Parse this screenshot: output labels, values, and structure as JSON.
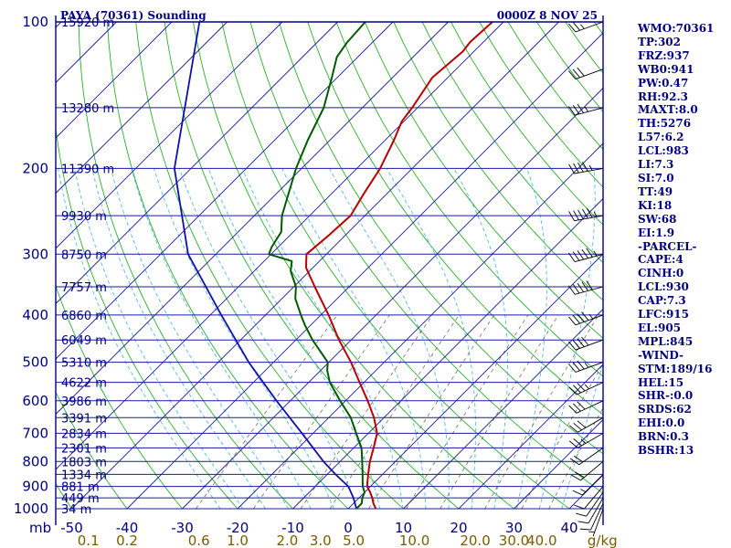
{
  "chart_data": {
    "type": "skew-t",
    "title": "PAYA (70361) Sounding",
    "datetime": "0000Z  8 NOV 25",
    "pressure_axis_label": "mb",
    "pressure_levels": [
      {
        "label": "100",
        "p": 100
      },
      {
        "label": "200",
        "p": 200
      },
      {
        "label": "300",
        "p": 300
      },
      {
        "label": "400",
        "p": 400
      },
      {
        "label": "500",
        "p": 500
      },
      {
        "label": "600",
        "p": 600
      },
      {
        "label": "700",
        "p": 700
      },
      {
        "label": "800",
        "p": 800
      },
      {
        "label": "900",
        "p": 900
      },
      {
        "label": "1000",
        "p": 1000
      }
    ],
    "height_lines": [
      {
        "label": "15920 m",
        "p": 100
      },
      {
        "label": "13280 m",
        "p": 150
      },
      {
        "label": "11390 m",
        "p": 200
      },
      {
        "label": "9930 m",
        "p": 250
      },
      {
        "label": "8750 m",
        "p": 300
      },
      {
        "label": "7757 m",
        "p": 350
      },
      {
        "label": "6860 m",
        "p": 400
      },
      {
        "label": "6049 m",
        "p": 450
      },
      {
        "label": "5310 m",
        "p": 500
      },
      {
        "label": "4622 m",
        "p": 550
      },
      {
        "label": "3986 m",
        "p": 600
      },
      {
        "label": "3391 m",
        "p": 650
      },
      {
        "label": "2834 m",
        "p": 700
      },
      {
        "label": "2301 m",
        "p": 750
      },
      {
        "label": "1803 m",
        "p": 800
      },
      {
        "label": "1334 m",
        "p": 850
      },
      {
        "label": "881 m",
        "p": 900
      },
      {
        "label": "449 m",
        "p": 950
      },
      {
        "label": "34 m",
        "p": 1000
      }
    ],
    "temperature_ticks": [
      {
        "label": "-50",
        "t": -50
      },
      {
        "label": "-40",
        "t": -40
      },
      {
        "label": "-30",
        "t": -30
      },
      {
        "label": "-20",
        "t": -20
      },
      {
        "label": "-10",
        "t": -10
      },
      {
        "label": "0",
        "t": 0
      },
      {
        "label": "10",
        "t": 10
      },
      {
        "label": "20",
        "t": 20
      },
      {
        "label": "30",
        "t": 30
      },
      {
        "label": "40",
        "t": 40
      }
    ],
    "mixing_ratio_ticks": [
      {
        "label": "0.1",
        "t": -47
      },
      {
        "label": "0.2",
        "t": -40
      },
      {
        "label": "0.6",
        "t": -27
      },
      {
        "label": "1.0",
        "t": -20
      },
      {
        "label": "2.0",
        "t": -11
      },
      {
        "label": "3.0",
        "t": -5
      },
      {
        "label": "5.0",
        "t": 1
      },
      {
        "label": "10.0",
        "t": 12
      },
      {
        "label": "20.0",
        "t": 23
      },
      {
        "label": "30.0",
        "t": 30
      },
      {
        "label": "40.0",
        "t": 35
      },
      {
        "label": "g/kg",
        "t": 46
      }
    ],
    "temperature_profile": [
      [
        1000,
        5.0
      ],
      [
        975,
        3.6
      ],
      [
        950,
        2.4
      ],
      [
        925,
        1.0
      ],
      [
        900,
        -0.6
      ],
      [
        850,
        -2.6
      ],
      [
        800,
        -4.6
      ],
      [
        750,
        -6.4
      ],
      [
        700,
        -8.4
      ],
      [
        650,
        -11.8
      ],
      [
        600,
        -16.0
      ],
      [
        550,
        -20.8
      ],
      [
        500,
        -26.0
      ],
      [
        450,
        -32.2
      ],
      [
        400,
        -38.6
      ],
      [
        350,
        -46.2
      ],
      [
        320,
        -51.2
      ],
      [
        300,
        -53.6
      ],
      [
        275,
        -53.0
      ],
      [
        250,
        -52.6
      ],
      [
        225,
        -54.2
      ],
      [
        200,
        -55.8
      ],
      [
        175,
        -58.4
      ],
      [
        160,
        -60.4
      ],
      [
        150,
        -61.0
      ],
      [
        130,
        -62.8
      ],
      [
        115,
        -62.0
      ],
      [
        110,
        -62.4
      ],
      [
        100,
        -62.0
      ]
    ],
    "dewpoint_profile": [
      [
        1000,
        1.5
      ],
      [
        975,
        1.5
      ],
      [
        950,
        0.6
      ],
      [
        925,
        0.0
      ],
      [
        900,
        -1.4
      ],
      [
        850,
        -3.6
      ],
      [
        800,
        -6.0
      ],
      [
        750,
        -8.6
      ],
      [
        700,
        -12.2
      ],
      [
        650,
        -16.0
      ],
      [
        600,
        -21.0
      ],
      [
        550,
        -26.2
      ],
      [
        520,
        -28.8
      ],
      [
        500,
        -30.2
      ],
      [
        450,
        -37.0
      ],
      [
        420,
        -41.0
      ],
      [
        400,
        -43.6
      ],
      [
        370,
        -47.6
      ],
      [
        350,
        -49.6
      ],
      [
        325,
        -53.4
      ],
      [
        310,
        -55.0
      ],
      [
        300,
        -60.4
      ],
      [
        290,
        -61.2
      ],
      [
        270,
        -62.2
      ],
      [
        250,
        -65.0
      ],
      [
        200,
        -71.0
      ],
      [
        175,
        -74.0
      ],
      [
        150,
        -77.0
      ],
      [
        130,
        -81.0
      ],
      [
        118,
        -83.8
      ],
      [
        110,
        -84.6
      ],
      [
        100,
        -85.0
      ]
    ],
    "parcel_profile": [
      [
        1000,
        1.5
      ],
      [
        950,
        -1.0
      ],
      [
        900,
        -4.0
      ],
      [
        850,
        -8.5
      ],
      [
        800,
        -13.0
      ],
      [
        700,
        -22.0
      ],
      [
        600,
        -32.5
      ],
      [
        500,
        -44.5
      ],
      [
        400,
        -58.0
      ],
      [
        300,
        -75.0
      ],
      [
        200,
        -93.0
      ],
      [
        100,
        -115.0
      ]
    ],
    "wind_barbs": [
      {
        "p": 1000,
        "dir": 200,
        "kt": 5
      },
      {
        "p": 975,
        "dir": 205,
        "kt": 10
      },
      {
        "p": 950,
        "dir": 210,
        "kt": 10
      },
      {
        "p": 925,
        "dir": 215,
        "kt": 10
      },
      {
        "p": 900,
        "dir": 220,
        "kt": 10
      },
      {
        "p": 850,
        "dir": 225,
        "kt": 15
      },
      {
        "p": 800,
        "dir": 230,
        "kt": 20
      },
      {
        "p": 750,
        "dir": 235,
        "kt": 20
      },
      {
        "p": 700,
        "dir": 240,
        "kt": 25
      },
      {
        "p": 650,
        "dir": 240,
        "kt": 30
      },
      {
        "p": 600,
        "dir": 245,
        "kt": 30
      },
      {
        "p": 550,
        "dir": 245,
        "kt": 35
      },
      {
        "p": 500,
        "dir": 250,
        "kt": 35
      },
      {
        "p": 450,
        "dir": 250,
        "kt": 40
      },
      {
        "p": 400,
        "dir": 250,
        "kt": 45
      },
      {
        "p": 350,
        "dir": 255,
        "kt": 50
      },
      {
        "p": 300,
        "dir": 255,
        "kt": 55
      },
      {
        "p": 250,
        "dir": 260,
        "kt": 55
      },
      {
        "p": 200,
        "dir": 260,
        "kt": 45
      },
      {
        "p": 150,
        "dir": 255,
        "kt": 35
      },
      {
        "p": 125,
        "dir": 250,
        "kt": 30
      },
      {
        "p": 100,
        "dir": 250,
        "kt": 25
      }
    ]
  },
  "colors": {
    "frame": "#000080",
    "isobar": "#1a1aa0",
    "isotherm": "#1a1aa0",
    "dry_adiabat": "#2ab02a",
    "moist_adiabat": "#56b8e8",
    "mixing_ratio": "#7a6e50",
    "temperature": "#bb0000",
    "dewpoint": "#005a00",
    "parcel": "#1010a8",
    "wind": "#000000"
  },
  "indices": [
    "WMO:70361",
    "TP:302",
    "FRZ:937",
    "WB0:941",
    "PW:0.47",
    "RH:92.3",
    "MAXT:8.0",
    "TH:5276",
    "L57:6.2",
    "LCL:983",
    "LI:7.3",
    "SI:7.0",
    "TT:49",
    "KI:18",
    "SW:68",
    "EI:1.9",
    "-PARCEL-",
    "CAPE:4",
    "CINH:0",
    "LCL:930",
    "CAP:7.3",
    "LFC:915",
    "EL:905",
    "MPL:845",
    "-WIND-",
    "STM:189/16",
    "HEL:15",
    "SHR-:0.0",
    "SRDS:62",
    "EHI:0.0",
    "BRN:0.3",
    "BSHR:13"
  ]
}
